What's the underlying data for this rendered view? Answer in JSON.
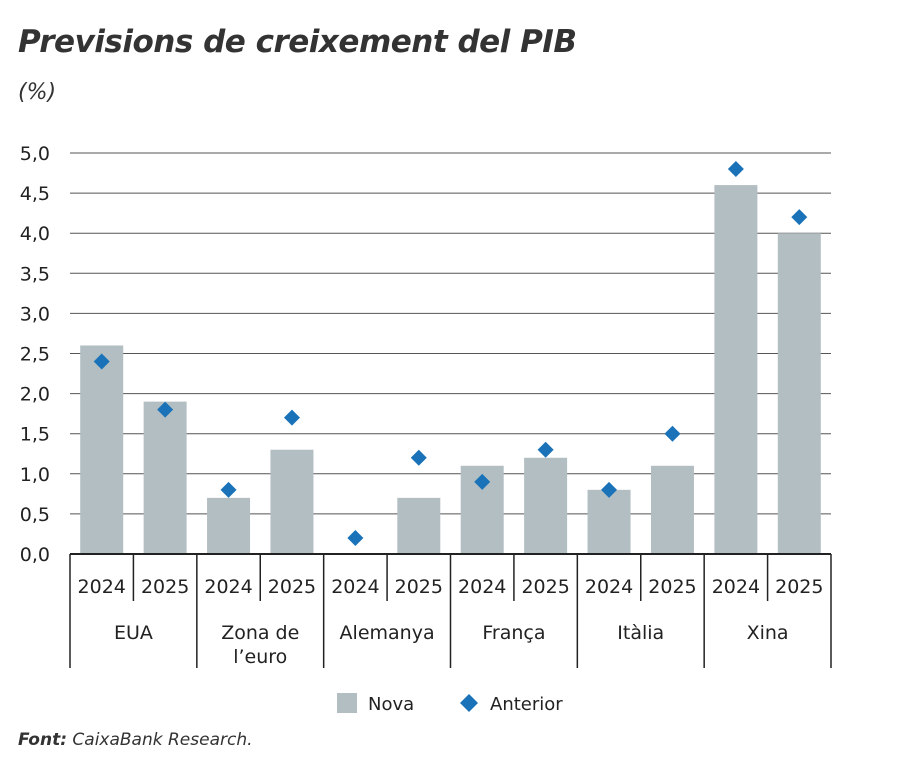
{
  "chart_data": {
    "type": "bar",
    "title": "Previsions de creixement del PIB",
    "subtitle": "(%)",
    "groups": [
      "EUA",
      "Zona de l’euro",
      "Alemanya",
      "França",
      "Itàlia",
      "Xina"
    ],
    "years": [
      "2024",
      "2025"
    ],
    "ylim": [
      0,
      5
    ],
    "yticks": [
      "0,0",
      "0,5",
      "1,0",
      "1,5",
      "2,0",
      "2,5",
      "3,0",
      "3,5",
      "4,0",
      "4,5",
      "5,0"
    ],
    "grid": true,
    "legend_position": "bottom",
    "series": [
      {
        "name": "Nova",
        "type": "bar",
        "color": "#b3bec3",
        "values": [
          2.6,
          1.9,
          0.7,
          1.3,
          0.0,
          0.7,
          1.1,
          1.2,
          0.8,
          1.1,
          4.6,
          4.0
        ]
      },
      {
        "name": "Anterior",
        "type": "marker-diamond",
        "color": "#1a72b8",
        "values": [
          2.4,
          1.8,
          0.8,
          1.7,
          0.2,
          1.2,
          0.9,
          1.3,
          0.8,
          1.5,
          4.8,
          4.2
        ]
      }
    ],
    "source_label": "Font:",
    "source": "CaixaBank Research."
  }
}
